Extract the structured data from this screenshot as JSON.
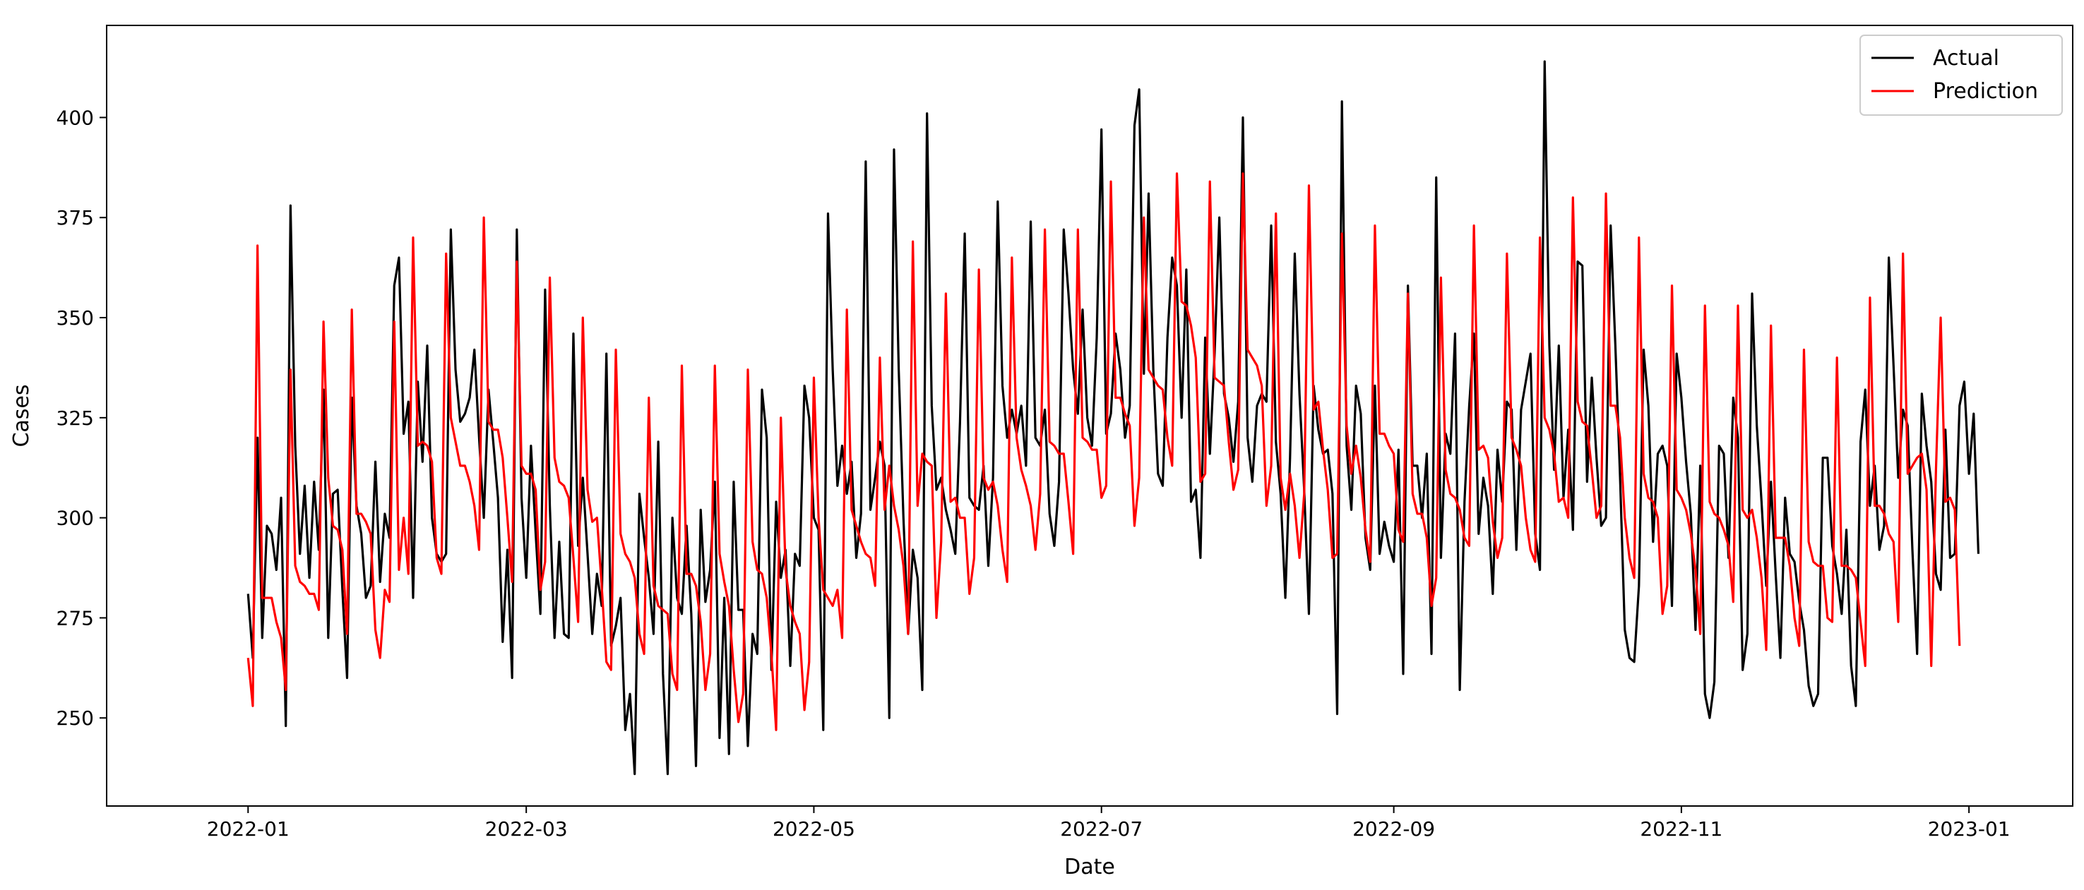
{
  "chart_data": {
    "type": "line",
    "title": "",
    "xlabel": "Date",
    "ylabel": "Cases",
    "x_start": "2022-01-01",
    "x_end": "2022-12-31",
    "xlim": [
      "2021-12-02",
      "2023-01-23"
    ],
    "ylim": [
      228,
      423
    ],
    "x_ticks": [
      "2022-01-01",
      "2022-03-01",
      "2022-05-01",
      "2022-07-01",
      "2022-09-01",
      "2022-11-01",
      "2023-01-01"
    ],
    "x_tick_labels": [
      "2022-01",
      "2022-03",
      "2022-05",
      "2022-07",
      "2022-09",
      "2022-11",
      "2023-01"
    ],
    "y_ticks": [
      250,
      275,
      300,
      325,
      350,
      375,
      400
    ],
    "y_tick_labels": [
      "250",
      "275",
      "300",
      "325",
      "350",
      "375",
      "400"
    ],
    "grid": false,
    "legend_position": "top-right",
    "series": [
      {
        "name": "Actual",
        "color": "#000000",
        "values": [
          281,
          265,
          320,
          270,
          298,
          296,
          287,
          305,
          248,
          378,
          318,
          291,
          308,
          285,
          309,
          292,
          332,
          270,
          306,
          307,
          282,
          260,
          330,
          303,
          296,
          280,
          283,
          314,
          284,
          301,
          295,
          358,
          365,
          321,
          329,
          280,
          334,
          314,
          343,
          300,
          291,
          289,
          291,
          372,
          337,
          324,
          326,
          330,
          342,
          320,
          300,
          332,
          319,
          305,
          269,
          292,
          260,
          372,
          305,
          285,
          318,
          296,
          276,
          357,
          303,
          270,
          294,
          271,
          270,
          346,
          293,
          310,
          291,
          271,
          286,
          278,
          341,
          268,
          273,
          280,
          247,
          256,
          236,
          306,
          295,
          285,
          271,
          319,
          261,
          236,
          300,
          280,
          276,
          298,
          276,
          238,
          302,
          279,
          287,
          309,
          245,
          280,
          241,
          309,
          277,
          277,
          243,
          271,
          266,
          332,
          320,
          262,
          304,
          285,
          292,
          263,
          291,
          288,
          333,
          325,
          300,
          297,
          247,
          376,
          337,
          308,
          318,
          306,
          314,
          290,
          301,
          389,
          302,
          310,
          319,
          313,
          250,
          392,
          337,
          300,
          271,
          292,
          285,
          257,
          401,
          328,
          307,
          310,
          302,
          297,
          291,
          324,
          371,
          305,
          303,
          302,
          313,
          288,
          310,
          379,
          333,
          320,
          327,
          321,
          328,
          313,
          374,
          320,
          318,
          327,
          301,
          293,
          309,
          372,
          356,
          337,
          326,
          352,
          325,
          318,
          345,
          397,
          321,
          326,
          346,
          337,
          320,
          328,
          398,
          407,
          336,
          381,
          337,
          311,
          308,
          345,
          365,
          358,
          325,
          362,
          304,
          307,
          290,
          345,
          316,
          341,
          375,
          331,
          325,
          314,
          329,
          400,
          320,
          309,
          328,
          331,
          329,
          373,
          319,
          306,
          280,
          315,
          366,
          331,
          307,
          276,
          333,
          322,
          316,
          317,
          306,
          251,
          404,
          318,
          302,
          333,
          326,
          295,
          287,
          333,
          291,
          299,
          293,
          289,
          317,
          261,
          358,
          313,
          313,
          300,
          316,
          266,
          385,
          290,
          321,
          316,
          346,
          257,
          304,
          328,
          346,
          296,
          310,
          303,
          281,
          317,
          304,
          329,
          327,
          292,
          327,
          334,
          341,
          296,
          287,
          414,
          343,
          312,
          343,
          305,
          322,
          297,
          364,
          363,
          309,
          335,
          315,
          298,
          300,
          373,
          343,
          310,
          272,
          265,
          264,
          283,
          342,
          328,
          294,
          316,
          318,
          313,
          278,
          341,
          330,
          314,
          301,
          272,
          313,
          256,
          250,
          259,
          318,
          316,
          290,
          330,
          320,
          262,
          271,
          356,
          323,
          304,
          283,
          309,
          286,
          265,
          305,
          291,
          289,
          279,
          272,
          258,
          253,
          256,
          315,
          315,
          293,
          286,
          276,
          297,
          263,
          253,
          319,
          332,
          303,
          313,
          292,
          298,
          365,
          338,
          310,
          327,
          323,
          292,
          266,
          331,
          318,
          309,
          286,
          282,
          322,
          290,
          291,
          328,
          334,
          311,
          326,
          291
        ]
      },
      {
        "name": "Prediction",
        "color": "#ff0000",
        "values": [
          265,
          253,
          368,
          280,
          280,
          280,
          274,
          270,
          257,
          337,
          288,
          284,
          283,
          281,
          281,
          277,
          349,
          310,
          298,
          297,
          292,
          271,
          352,
          301,
          301,
          299,
          296,
          272,
          265,
          282,
          279,
          349,
          287,
          300,
          286,
          370,
          318,
          319,
          318,
          314,
          290,
          286,
          366,
          325,
          319,
          313,
          313,
          309,
          303,
          292,
          375,
          324,
          322,
          322,
          315,
          300,
          284,
          364,
          313,
          311,
          311,
          307,
          282,
          289,
          360,
          315,
          309,
          308,
          305,
          290,
          274,
          350,
          307,
          299,
          300,
          283,
          264,
          262,
          342,
          296,
          291,
          289,
          285,
          271,
          266,
          330,
          283,
          278,
          277,
          276,
          261,
          257,
          338,
          286,
          286,
          283,
          274,
          257,
          266,
          338,
          291,
          284,
          278,
          262,
          249,
          256,
          337,
          294,
          287,
          286,
          280,
          266,
          247,
          325,
          287,
          278,
          274,
          271,
          252,
          264,
          335,
          300,
          282,
          280,
          278,
          282,
          270,
          352,
          302,
          298,
          294,
          291,
          290,
          283,
          340,
          302,
          313,
          303,
          297,
          288,
          271,
          369,
          303,
          316,
          314,
          313,
          275,
          294,
          356,
          304,
          305,
          300,
          300,
          281,
          290,
          362,
          310,
          307,
          309,
          303,
          292,
          284,
          365,
          320,
          312,
          308,
          303,
          292,
          306,
          372,
          319,
          318,
          316,
          316,
          304,
          291,
          372,
          320,
          319,
          317,
          317,
          305,
          308,
          384,
          330,
          330,
          326,
          323,
          298,
          310,
          375,
          337,
          335,
          333,
          332,
          320,
          313,
          386,
          354,
          353,
          348,
          340,
          309,
          311,
          384,
          335,
          334,
          333,
          319,
          307,
          312,
          386,
          342,
          340,
          338,
          333,
          303,
          313,
          376,
          310,
          302,
          311,
          303,
          290,
          306,
          383,
          327,
          329,
          317,
          307,
          290,
          291,
          371,
          323,
          311,
          318,
          310,
          297,
          289,
          373,
          321,
          321,
          318,
          316,
          297,
          294,
          356,
          306,
          301,
          301,
          295,
          278,
          285,
          360,
          312,
          306,
          305,
          302,
          295,
          293,
          373,
          317,
          318,
          315,
          299,
          290,
          295,
          366,
          320,
          317,
          313,
          300,
          292,
          289,
          370,
          325,
          322,
          316,
          304,
          305,
          300,
          380,
          329,
          324,
          323,
          312,
          300,
          303,
          381,
          328,
          328,
          320,
          300,
          290,
          285,
          370,
          311,
          305,
          304,
          300,
          276,
          283,
          358,
          307,
          305,
          302,
          296,
          287,
          271,
          353,
          304,
          301,
          300,
          297,
          293,
          279,
          353,
          302,
          300,
          302,
          295,
          285,
          267,
          348,
          295,
          295,
          295,
          288,
          275,
          268,
          342,
          294,
          289,
          288,
          288,
          275,
          274,
          340,
          288,
          288,
          287,
          285,
          274,
          263,
          355,
          303,
          303,
          301,
          296,
          294,
          274,
          366,
          311,
          313,
          315,
          316,
          307,
          263,
          312,
          350,
          304,
          305,
          302,
          268
        ]
      }
    ]
  }
}
